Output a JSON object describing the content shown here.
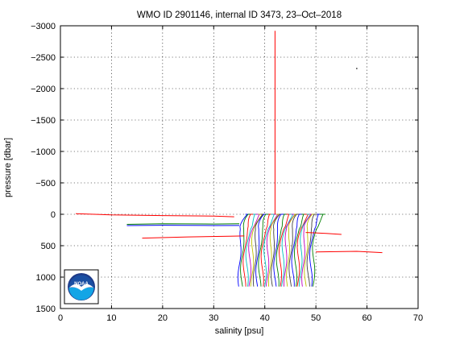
{
  "chart_data": {
    "type": "line",
    "title": "WMO ID 2901146, internal ID 3473, 23–Oct–2018",
    "xlabel": "salinity [psu]",
    "ylabel": "pressure [dbar]",
    "xlim": [
      0,
      70
    ],
    "ylim": [
      -3000,
      1500
    ],
    "y_reversed": true,
    "grid": true,
    "x_ticks": [
      0,
      10,
      20,
      30,
      40,
      50,
      60,
      70
    ],
    "x_tick_labels": [
      "0",
      "10",
      "20",
      "30",
      "40",
      "50",
      "60",
      "70"
    ],
    "y_ticks": [
      -3000,
      -2500,
      -2000,
      -1500,
      -1000,
      -500,
      0,
      500,
      1000,
      1500
    ],
    "y_tick_labels": [
      "−3000",
      "−2500",
      "−2000",
      "−1500",
      "−1000",
      "−500",
      "0",
      "500",
      "1000",
      "1500"
    ],
    "profiles": {
      "count": 30,
      "salinity_start": 35.0,
      "salinity_step": 0.5,
      "surface_pressure": 0,
      "bottom_pressure": 1150,
      "colors": [
        "#0000ff",
        "#008000",
        "#ff0000",
        "#00bfbf",
        "#bf00bf",
        "#bfbf00",
        "#404040"
      ]
    },
    "outlier_segments": [
      {
        "name": "spike",
        "color": "#ff0000",
        "points": [
          [
            42.0,
            -2920
          ],
          [
            42.0,
            0
          ]
        ]
      },
      {
        "name": "surface-left",
        "color": "#ff0000",
        "points": [
          [
            3.0,
            -10
          ],
          [
            10.0,
            10
          ],
          [
            20.0,
            20
          ],
          [
            30.0,
            30
          ],
          [
            34.0,
            40
          ]
        ]
      },
      {
        "name": "shallow-left-1",
        "color": "#008000",
        "points": [
          [
            13.0,
            160
          ],
          [
            20.0,
            150
          ],
          [
            30.0,
            155
          ],
          [
            35.0,
            150
          ]
        ]
      },
      {
        "name": "shallow-left-2",
        "color": "#0000ff",
        "points": [
          [
            13.0,
            180
          ],
          [
            20.0,
            175
          ],
          [
            30.0,
            180
          ],
          [
            35.0,
            178
          ]
        ]
      },
      {
        "name": "shallow-left-3",
        "color": "#ff0000",
        "points": [
          [
            16.0,
            380
          ],
          [
            25.0,
            360
          ],
          [
            33.0,
            350
          ],
          [
            36.0,
            345
          ]
        ]
      },
      {
        "name": "mid-right-1",
        "color": "#ff0000",
        "points": [
          [
            48.0,
            290
          ],
          [
            52.0,
            305
          ],
          [
            55.0,
            320
          ]
        ]
      },
      {
        "name": "deep-right",
        "color": "#ff0000",
        "points": [
          [
            50.0,
            600
          ],
          [
            58.0,
            590
          ],
          [
            63.0,
            610
          ]
        ]
      }
    ],
    "stray_point": {
      "x": 58.0,
      "y": -2320,
      "color": "#000000"
    }
  },
  "logo": {
    "label": "NOAA",
    "colors": {
      "outer": "#1f3c8a",
      "sky": "#1a4fa3",
      "gull": "#ffffff",
      "water": "#13a5e6",
      "border": "#000000"
    }
  },
  "colors": {
    "axes": "#000000",
    "grid": "#000000",
    "background": "#ffffff"
  }
}
